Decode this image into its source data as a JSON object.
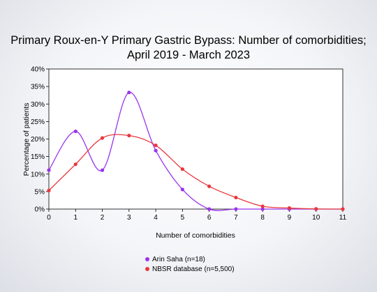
{
  "chart_data": {
    "type": "line",
    "title_lines": [
      "Primary Roux-en-Y Primary Gastric Bypass: Number of comorbidities;",
      "April 2019 - March 2023"
    ],
    "xlabel": "Number of comorbidities",
    "ylabel": "Percentage of patients",
    "x": [
      0,
      1,
      2,
      3,
      4,
      5,
      6,
      7,
      8,
      9,
      10,
      11
    ],
    "x_ticks": [
      "0",
      "1",
      "2",
      "3",
      "4",
      "5",
      "6",
      "7",
      "8",
      "9",
      "10",
      "11"
    ],
    "ylim": [
      0,
      40
    ],
    "y_ticks": [
      "0%",
      "5%",
      "10%",
      "15%",
      "20%",
      "25%",
      "30%",
      "35%",
      "40%"
    ],
    "grid": false,
    "legend_position": "bottom",
    "series": [
      {
        "name": "Arin Saha (n=18)",
        "color": "#9933ee",
        "values": [
          11.1,
          22.2,
          11.1,
          33.3,
          16.7,
          5.6,
          0,
          0,
          0,
          0,
          0,
          0
        ]
      },
      {
        "name": "NBSR database (n=5,500)",
        "color": "#e8383d",
        "values": [
          5.3,
          12.8,
          20.3,
          21.0,
          18.2,
          11.4,
          6.5,
          3.3,
          0.8,
          0.3,
          0.05,
          0
        ]
      }
    ]
  }
}
